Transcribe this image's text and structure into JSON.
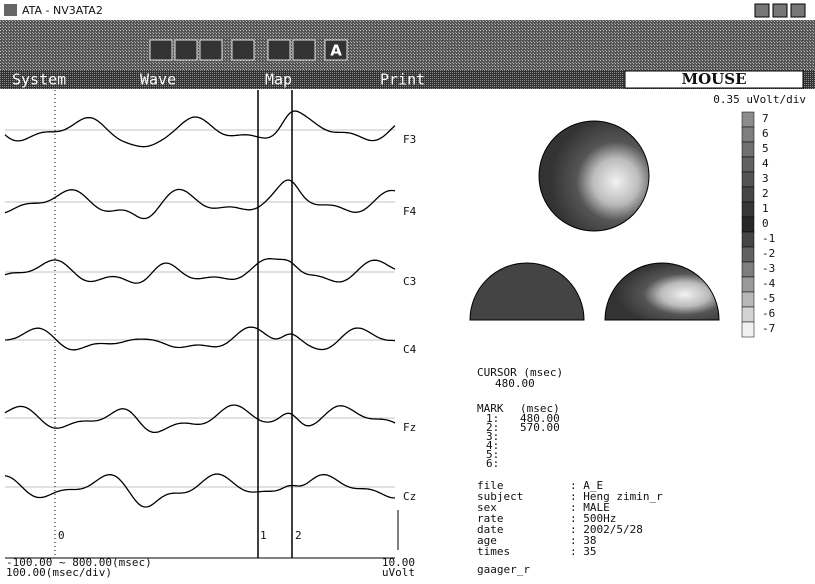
{
  "window": {
    "title": "ATA - NV3ATA2"
  },
  "toolbar": {
    "text_button": "A"
  },
  "menu": [
    "System",
    "Wave",
    "Map",
    "Print"
  ],
  "mode": "MOUSE",
  "scale": "0.35 uVolt/div",
  "channels": [
    "F3",
    "F4",
    "C3",
    "C4",
    "Fz",
    "Cz"
  ],
  "color_scale": [
    "7",
    "6",
    "5",
    "4",
    "3",
    "2",
    "1",
    "0",
    "-1",
    "-2",
    "-3",
    "-4",
    "-5",
    "-6",
    "-7"
  ],
  "cursor": {
    "label": "CURSOR (msec)",
    "value": "480.00"
  },
  "marks": {
    "label": "MARK",
    "unit": "(msec)",
    "rows": [
      [
        "1:",
        "480.00"
      ],
      [
        "2:",
        "570.00"
      ],
      [
        "3:",
        ""
      ],
      [
        "4:",
        ""
      ],
      [
        "5:",
        ""
      ],
      [
        "6:",
        ""
      ]
    ]
  },
  "info": {
    "rows": [
      [
        "file",
        ": A_E"
      ],
      [
        "subject",
        ": Heng zimin_r"
      ],
      [
        "sex",
        ": MALE"
      ],
      [
        "rate",
        ": 500Hz"
      ],
      [
        "date",
        ": 2002/5/28"
      ],
      [
        "age",
        ": 38"
      ],
      [
        "times",
        ": 35"
      ]
    ],
    "extra": "gaager_r"
  },
  "markers": [
    "0",
    "1",
    "2"
  ],
  "time_range": "-100.00 ~ 800.00(msec)",
  "time_scale": "100.00(msec/div)",
  "amp": "10.00",
  "amp_unit": "uVolt"
}
